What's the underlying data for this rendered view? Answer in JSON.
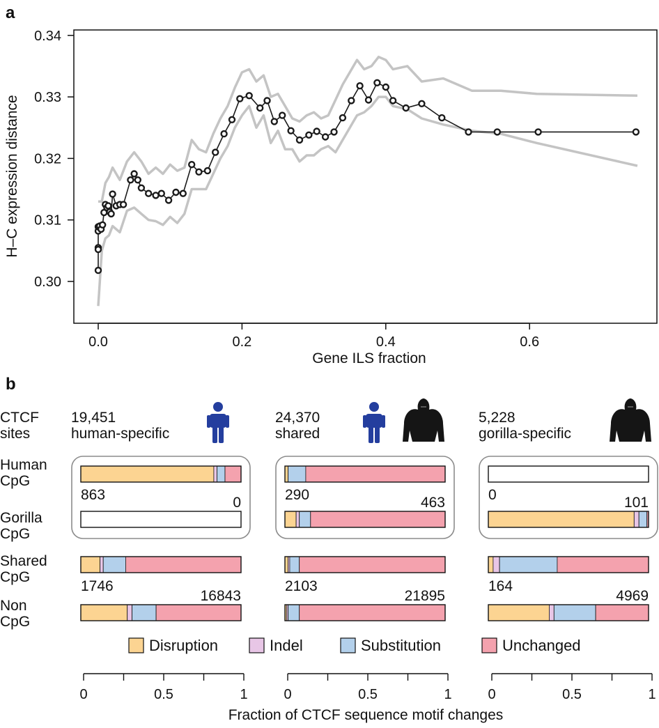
{
  "chart_data": [
    {
      "type": "line",
      "panel_label": "a",
      "xlabel": "Gene ILS fraction",
      "ylabel": "H–C expression distance",
      "xlim": [
        0.0,
        0.75
      ],
      "ylim": [
        0.296,
        0.34
      ],
      "xticks": [
        0.0,
        0.2,
        0.4,
        0.6
      ],
      "xtick_labels": [
        "0.0",
        "0.2",
        "0.4",
        "0.6"
      ],
      "yticks": [
        0.3,
        0.31,
        0.32,
        0.33,
        0.34
      ],
      "ytick_labels": [
        "0.30",
        "0.31",
        "0.32",
        "0.33",
        "0.34"
      ],
      "grid": false,
      "series": [
        {
          "role": "mean",
          "color": "#1a1a1a",
          "marker": "circle",
          "x": [
            0.0,
            0.0,
            0.0,
            0.0,
            0.0,
            0.002,
            0.004,
            0.006,
            0.008,
            0.01,
            0.012,
            0.014,
            0.016,
            0.018,
            0.02,
            0.025,
            0.03,
            0.035,
            0.045,
            0.05,
            0.055,
            0.06,
            0.07,
            0.08,
            0.088,
            0.098,
            0.108,
            0.118,
            0.13,
            0.14,
            0.152,
            0.163,
            0.175,
            0.186,
            0.197,
            0.21,
            0.225,
            0.235,
            0.245,
            0.256,
            0.268,
            0.28,
            0.293,
            0.304,
            0.316,
            0.328,
            0.34,
            0.352,
            0.364,
            0.376,
            0.388,
            0.4,
            0.41,
            0.428,
            0.45,
            0.478,
            0.515,
            0.555,
            0.612,
            0.748
          ],
          "y": [
            0.3018,
            0.3055,
            0.3052,
            0.3082,
            0.3089,
            0.309,
            0.3085,
            0.3092,
            0.3112,
            0.3125,
            0.312,
            0.3123,
            0.3113,
            0.311,
            0.3142,
            0.3123,
            0.3125,
            0.3125,
            0.3165,
            0.3175,
            0.3165,
            0.3152,
            0.3143,
            0.314,
            0.3143,
            0.3132,
            0.3145,
            0.3143,
            0.319,
            0.3178,
            0.318,
            0.321,
            0.324,
            0.3263,
            0.3297,
            0.3302,
            0.3282,
            0.3294,
            0.326,
            0.327,
            0.3245,
            0.323,
            0.3238,
            0.3244,
            0.3235,
            0.3243,
            0.3266,
            0.3294,
            0.3318,
            0.3295,
            0.3323,
            0.3316,
            0.3294,
            0.3282,
            0.3289,
            0.3266,
            0.3243,
            0.3243,
            0.3243,
            0.3243
          ]
        },
        {
          "role": "upper-band",
          "color": "#c4c4c4",
          "x": [
            0.0,
            0.005,
            0.01,
            0.015,
            0.02,
            0.03,
            0.04,
            0.05,
            0.06,
            0.07,
            0.08,
            0.09,
            0.1,
            0.11,
            0.12,
            0.13,
            0.14,
            0.15,
            0.16,
            0.17,
            0.18,
            0.19,
            0.2,
            0.21,
            0.22,
            0.23,
            0.24,
            0.25,
            0.26,
            0.27,
            0.28,
            0.29,
            0.3,
            0.31,
            0.32,
            0.33,
            0.34,
            0.35,
            0.36,
            0.37,
            0.38,
            0.39,
            0.4,
            0.41,
            0.43,
            0.45,
            0.48,
            0.52,
            0.56,
            0.61,
            0.75
          ],
          "y": [
            0.313,
            0.313,
            0.316,
            0.317,
            0.3185,
            0.3165,
            0.3195,
            0.321,
            0.3195,
            0.3175,
            0.3185,
            0.3175,
            0.319,
            0.318,
            0.3185,
            0.323,
            0.3215,
            0.321,
            0.324,
            0.3265,
            0.3285,
            0.3315,
            0.334,
            0.3345,
            0.3325,
            0.3335,
            0.33,
            0.3305,
            0.3285,
            0.3265,
            0.326,
            0.327,
            0.3275,
            0.3265,
            0.327,
            0.3295,
            0.332,
            0.334,
            0.336,
            0.3345,
            0.335,
            0.3365,
            0.336,
            0.3345,
            0.335,
            0.3325,
            0.333,
            0.331,
            0.331,
            0.3305,
            0.3302
          ]
        },
        {
          "role": "lower-band",
          "color": "#c4c4c4",
          "x": [
            0.0,
            0.005,
            0.01,
            0.015,
            0.02,
            0.03,
            0.04,
            0.05,
            0.06,
            0.07,
            0.08,
            0.09,
            0.1,
            0.11,
            0.12,
            0.13,
            0.14,
            0.15,
            0.16,
            0.17,
            0.18,
            0.19,
            0.2,
            0.21,
            0.22,
            0.23,
            0.24,
            0.25,
            0.26,
            0.27,
            0.28,
            0.29,
            0.3,
            0.31,
            0.32,
            0.33,
            0.34,
            0.35,
            0.36,
            0.37,
            0.38,
            0.39,
            0.4,
            0.41,
            0.43,
            0.45,
            0.48,
            0.52,
            0.56,
            0.61,
            0.75
          ],
          "y": [
            0.296,
            0.305,
            0.307,
            0.3075,
            0.309,
            0.308,
            0.3115,
            0.312,
            0.311,
            0.31,
            0.3098,
            0.3092,
            0.3105,
            0.3095,
            0.311,
            0.315,
            0.315,
            0.315,
            0.3175,
            0.32,
            0.322,
            0.325,
            0.327,
            0.3285,
            0.325,
            0.327,
            0.3225,
            0.3245,
            0.3215,
            0.3215,
            0.3195,
            0.3205,
            0.3205,
            0.3215,
            0.322,
            0.321,
            0.323,
            0.325,
            0.327,
            0.3275,
            0.3285,
            0.33,
            0.33,
            0.3285,
            0.328,
            0.3265,
            0.3255,
            0.3245,
            0.324,
            0.3225,
            0.3188
          ]
        }
      ]
    },
    {
      "type": "bar",
      "orientation": "horizontal",
      "stacked": true,
      "panel_label": "b",
      "xlabel": "Fraction of CTCF sequence motif changes",
      "xlim": [
        0,
        1
      ],
      "xtick_labels": [
        "0",
        "0.5",
        "1"
      ],
      "row_header": [
        "CTCF",
        "sites"
      ],
      "row_labels": [
        [
          "Human",
          "CpG"
        ],
        [
          "Gorilla",
          "CpG"
        ],
        [
          "Shared",
          "CpG"
        ],
        [
          "Non",
          "CpG"
        ]
      ],
      "legend_position": "bottom",
      "categories": [
        {
          "name": "Disruption",
          "color": "#fcd492"
        },
        {
          "name": "Indel",
          "color": "#e8c6e6"
        },
        {
          "name": "Substitution",
          "color": "#b3d0eb"
        },
        {
          "name": "Unchanged",
          "color": "#f4a2ae"
        }
      ],
      "groups": [
        {
          "count": "19,451",
          "label": "human-specific",
          "icons": [
            "human-icon"
          ],
          "bars": [
            {
              "row": "Human CpG",
              "values": [
                0.83,
                0.02,
                0.05,
                0.1
              ]
            },
            {
              "row": "Gorilla CpG",
              "values": [
                0,
                0,
                0,
                0
              ]
            },
            {
              "row": "Shared CpG",
              "values": [
                0.12,
                0.02,
                0.14,
                0.72
              ]
            },
            {
              "row": "Non CpG",
              "values": [
                0.29,
                0.03,
                0.15,
                0.53
              ]
            }
          ],
          "numbers": [
            "863",
            "0",
            "1746",
            "16843"
          ]
        },
        {
          "count": "24,370",
          "label": "shared",
          "icons": [
            "human-icon",
            "gorilla-icon"
          ],
          "bars": [
            {
              "row": "Human CpG",
              "values": [
                0.02,
                0.0,
                0.11,
                0.87
              ]
            },
            {
              "row": "Gorilla CpG",
              "values": [
                0.07,
                0.02,
                0.07,
                0.84
              ]
            },
            {
              "row": "Shared CpG",
              "values": [
                0.02,
                0.01,
                0.06,
                0.91
              ]
            },
            {
              "row": "Non CpG",
              "values": [
                0.01,
                0.01,
                0.07,
                0.91
              ]
            }
          ],
          "numbers": [
            "290",
            "463",
            "2103",
            "21895"
          ]
        },
        {
          "count": "5,228",
          "label": "gorilla-specific",
          "icons": [
            "gorilla-icon"
          ],
          "bars": [
            {
              "row": "Human CpG",
              "values": [
                0,
                0,
                0,
                0
              ]
            },
            {
              "row": "Gorilla CpG",
              "values": [
                0.91,
                0.03,
                0.05,
                0.01
              ]
            },
            {
              "row": "Shared CpG",
              "values": [
                0.03,
                0.04,
                0.36,
                0.57
              ]
            },
            {
              "row": "Non CpG",
              "values": [
                0.38,
                0.03,
                0.26,
                0.33
              ]
            }
          ],
          "numbers": [
            "0",
            "101",
            "164",
            "4969"
          ]
        }
      ]
    }
  ]
}
